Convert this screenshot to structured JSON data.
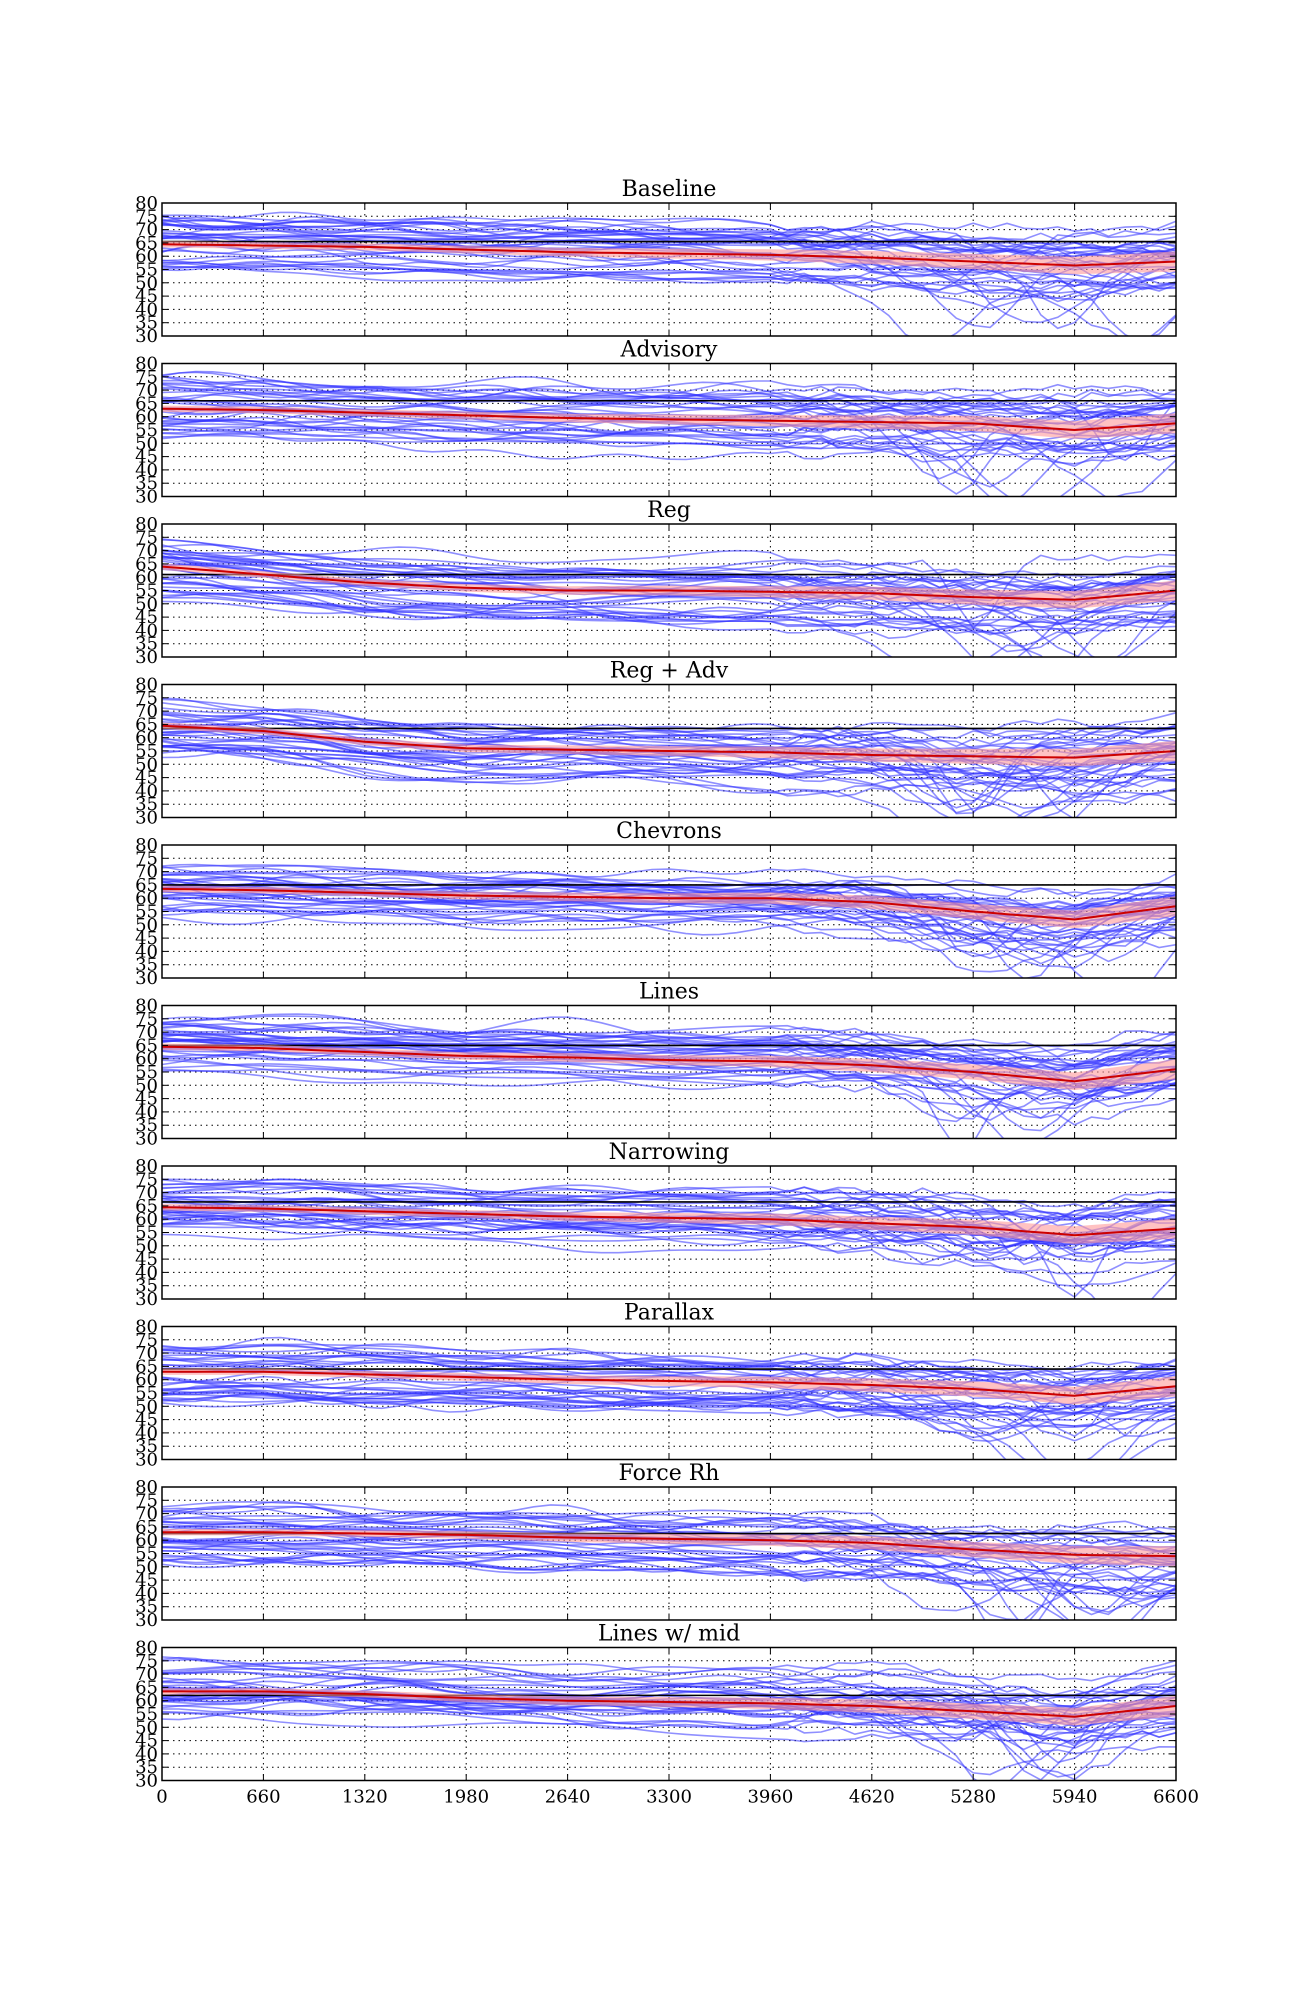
{
  "chart_data": {
    "type": "line",
    "layout": "10 stacked subplots sharing the x axis",
    "x_ticks": [
      0,
      660,
      1320,
      1980,
      2640,
      3300,
      3960,
      4620,
      5280,
      5940,
      6600
    ],
    "x_tick_labels": [
      "0",
      "660",
      "1320",
      "1980",
      "2640",
      "3300",
      "3960",
      "4620",
      "5280",
      "5940",
      "6600"
    ],
    "xlim": [
      0,
      6600
    ],
    "ylim": [
      30,
      80
    ],
    "y_ticks": [
      30,
      35,
      40,
      45,
      50,
      55,
      60,
      65,
      70,
      75,
      80
    ],
    "y_tick_labels": [
      "30",
      "35",
      "40",
      "45",
      "50",
      "55",
      "60",
      "65",
      "70",
      "75",
      "80"
    ],
    "grid": true,
    "legend": "none",
    "colors": {
      "individual_traces": "#3333ff",
      "reference_line": "#000000",
      "mean_line": "#cc0000",
      "confidence_band": "#ff9999",
      "grid": "#000000"
    },
    "panels": [
      {
        "title": "Baseline",
        "reference_y": 65.5,
        "mean": {
          "x": [
            0,
            660,
            1320,
            1980,
            2640,
            3300,
            3960,
            4620,
            5280,
            5940,
            6600
          ],
          "y": [
            64.5,
            64.0,
            63.5,
            62.5,
            61.5,
            61.0,
            60.5,
            59.5,
            58.0,
            56.5,
            58.0
          ]
        }
      },
      {
        "title": "Advisory",
        "reference_y": 66.0,
        "mean": {
          "x": [
            0,
            660,
            1320,
            1980,
            2640,
            3300,
            3960,
            4620,
            5280,
            5940,
            6600
          ],
          "y": [
            63.0,
            62.5,
            61.5,
            60.5,
            59.5,
            59.0,
            58.5,
            58.0,
            57.5,
            55.0,
            57.5
          ]
        }
      },
      {
        "title": "Reg",
        "reference_y": 61.0,
        "mean": {
          "x": [
            0,
            660,
            1320,
            1980,
            2640,
            3300,
            3960,
            4620,
            5280,
            5940,
            6600
          ],
          "y": [
            64.0,
            61.0,
            58.0,
            56.0,
            55.0,
            55.0,
            54.5,
            54.0,
            52.5,
            51.5,
            55.0
          ]
        }
      },
      {
        "title": "Reg + Adv",
        "reference_y": 63.5,
        "mean": {
          "x": [
            0,
            660,
            1320,
            1980,
            2640,
            3300,
            3960,
            4620,
            5280,
            5940,
            6600
          ],
          "y": [
            64.5,
            62.5,
            58.5,
            56.0,
            55.5,
            55.0,
            54.5,
            53.5,
            53.0,
            52.5,
            55.0
          ]
        }
      },
      {
        "title": "Chevrons",
        "reference_y": 65.0,
        "mean": {
          "x": [
            0,
            660,
            1320,
            1980,
            2640,
            3300,
            3960,
            4620,
            5280,
            5940,
            6600
          ],
          "y": [
            63.5,
            63.0,
            62.0,
            61.0,
            60.5,
            60.0,
            60.0,
            58.5,
            55.0,
            52.0,
            57.0
          ]
        }
      },
      {
        "title": "Lines",
        "reference_y": 65.0,
        "mean": {
          "x": [
            0,
            660,
            1320,
            1980,
            2640,
            3300,
            3960,
            4620,
            5280,
            5940,
            6600
          ],
          "y": [
            64.5,
            64.0,
            62.5,
            61.0,
            60.5,
            59.5,
            59.0,
            57.5,
            55.0,
            51.5,
            56.0
          ]
        }
      },
      {
        "title": "Narrowing",
        "reference_y": 66.5,
        "mean": {
          "x": [
            0,
            660,
            1320,
            1980,
            2640,
            3300,
            3960,
            4620,
            5280,
            5940,
            6600
          ],
          "y": [
            64.5,
            64.0,
            63.0,
            62.0,
            61.0,
            60.5,
            60.0,
            58.5,
            57.0,
            54.0,
            56.5
          ]
        }
      },
      {
        "title": "Parallax",
        "reference_y": 64.0,
        "mean": {
          "x": [
            0,
            660,
            1320,
            1980,
            2640,
            3300,
            3960,
            4620,
            5280,
            5940,
            6600
          ],
          "y": [
            63.0,
            63.0,
            62.0,
            61.0,
            60.0,
            59.5,
            59.0,
            58.0,
            56.5,
            54.0,
            57.5
          ]
        }
      },
      {
        "title": "Force Rh",
        "reference_y": 62.5,
        "mean": {
          "x": [
            0,
            660,
            1320,
            1980,
            2640,
            3300,
            3960,
            4620,
            5280,
            5940,
            6600
          ],
          "y": [
            63.0,
            63.0,
            62.5,
            62.0,
            61.0,
            60.5,
            60.0,
            59.0,
            56.5,
            54.5,
            54.0
          ]
        }
      },
      {
        "title": "Lines w/ mid",
        "reference_y": 62.0,
        "mean": {
          "x": [
            0,
            660,
            1320,
            1980,
            2640,
            3300,
            3960,
            4620,
            5280,
            5940,
            6600
          ],
          "y": [
            63.5,
            63.5,
            62.5,
            61.0,
            60.0,
            59.5,
            59.0,
            58.0,
            56.0,
            54.0,
            58.0
          ]
        }
      }
    ],
    "individual_traces_per_panel": 36
  }
}
